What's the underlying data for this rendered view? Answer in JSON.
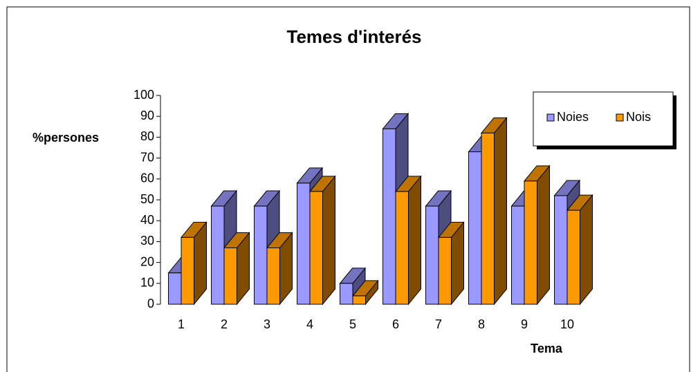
{
  "chart_data": {
    "type": "bar3d",
    "title": "Temes d'interés",
    "y_label": "%persones",
    "x_label": "Tema",
    "categories": [
      "1",
      "2",
      "3",
      "4",
      "5",
      "6",
      "7",
      "8",
      "9",
      "10"
    ],
    "series": [
      {
        "name": "Noies",
        "color": "#9999ff",
        "values": [
          15,
          47,
          47,
          58,
          10,
          84,
          47,
          73,
          47,
          52
        ]
      },
      {
        "name": "Nois",
        "color": "#ff9900",
        "values": [
          32,
          27,
          27,
          54,
          4,
          54,
          32,
          82,
          59,
          45
        ]
      }
    ],
    "ylim": [
      0,
      100
    ],
    "yticks": [
      0,
      10,
      20,
      30,
      40,
      50,
      60,
      70,
      80,
      90,
      100
    ],
    "grid": false,
    "legend": "upper right"
  }
}
